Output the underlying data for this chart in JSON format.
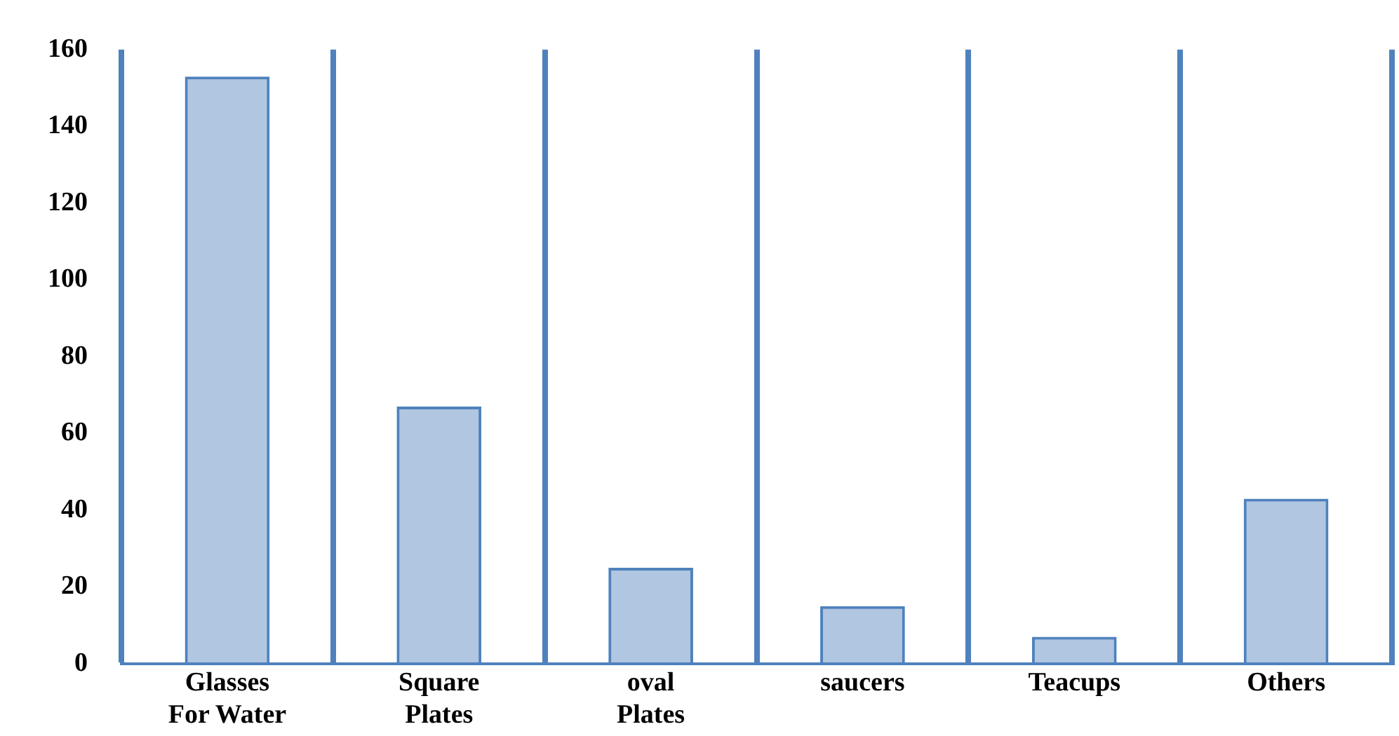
{
  "chart_data": {
    "type": "bar",
    "categories": [
      "Glasses\nFor Water",
      "Square\nPlates",
      "oval\nPlates",
      "saucers",
      "Teacups",
      "Others"
    ],
    "values": [
      153,
      67,
      25,
      15,
      7,
      43
    ],
    "color": "#4f81bd",
    "ylim": [
      0,
      160
    ],
    "yticks": [
      0,
      20,
      40,
      60,
      80,
      100,
      120,
      140,
      160
    ],
    "grid": "x",
    "legend": false
  }
}
